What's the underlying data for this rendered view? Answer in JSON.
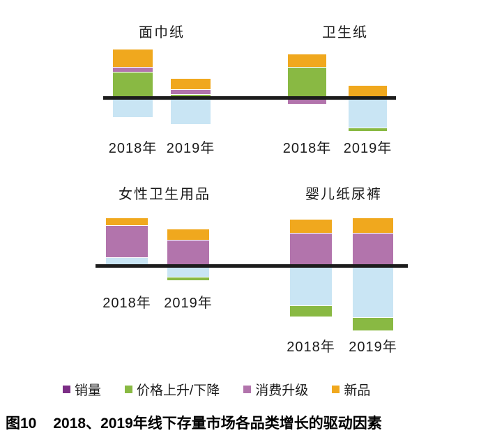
{
  "figure": {
    "caption_prefix": "图10",
    "caption_text": "2018、2019年线下存量市场各品类增长的驱动因素"
  },
  "colors": {
    "volume_legend": "#7C2E86",
    "price_up_down": "#89B943",
    "consumption_upgrade": "#B274AC",
    "new_products": "#F0A81E",
    "volume_bar_light_blue": "#C9E5F4",
    "axis": "#1C1C1C",
    "text": "#1A1A1A"
  },
  "legend": [
    {
      "label": "销量",
      "color_key": "volume_legend"
    },
    {
      "label": "价格上升/下降",
      "color_key": "price_up_down"
    },
    {
      "label": "消费升级",
      "color_key": "consumption_upgrade"
    },
    {
      "label": "新品",
      "color_key": "new_products"
    }
  ],
  "chart_data": [
    {
      "type": "bar",
      "title": "面巾纸",
      "categories": [
        "2018年",
        "2019年"
      ],
      "value_unit": "relative growth contribution (no numeric axis shown; values estimated in px)",
      "bars": [
        {
          "category": "2018年",
          "above_axis": [
            {
              "driver": "价格上升/下降",
              "color_key": "price_up_down",
              "value": 34
            },
            {
              "driver": "消费升级",
              "color_key": "consumption_upgrade",
              "value": 6
            },
            {
              "driver": "新品",
              "color_key": "new_products",
              "value": 25
            }
          ],
          "below_axis": [
            {
              "driver": "销量",
              "color_key": "volume_bar_light_blue",
              "value": 25
            }
          ]
        },
        {
          "category": "2019年",
          "above_axis": [
            {
              "driver": "价格上升/下降",
              "color_key": "price_up_down",
              "value": 2
            },
            {
              "driver": "消费升级",
              "color_key": "consumption_upgrade",
              "value": 6
            },
            {
              "driver": "新品",
              "color_key": "new_products",
              "value": 15
            }
          ],
          "below_axis": [
            {
              "driver": "销量",
              "color_key": "volume_bar_light_blue",
              "value": 35
            }
          ]
        }
      ]
    },
    {
      "type": "bar",
      "title": "卫生纸",
      "categories": [
        "2018年",
        "2019年"
      ],
      "value_unit": "relative growth contribution (no numeric axis shown; values estimated in px)",
      "bars": [
        {
          "category": "2018年",
          "above_axis": [
            {
              "driver": "价格上升/下降",
              "color_key": "price_up_down",
              "value": 41
            },
            {
              "driver": "新品",
              "color_key": "new_products",
              "value": 18
            }
          ],
          "below_axis": [
            {
              "driver": "消费升级",
              "color_key": "consumption_upgrade",
              "value": 6
            }
          ]
        },
        {
          "category": "2019年",
          "above_axis": [
            {
              "driver": "新品",
              "color_key": "new_products",
              "value": 15
            }
          ],
          "below_axis": [
            {
              "driver": "销量",
              "color_key": "volume_bar_light_blue",
              "value": 40
            },
            {
              "driver": "价格上升/下降",
              "color_key": "price_up_down",
              "value": 4
            }
          ]
        }
      ]
    },
    {
      "type": "bar",
      "title": "女性卫生用品",
      "categories": [
        "2018年",
        "2019年"
      ],
      "value_unit": "relative growth contribution (no numeric axis shown; values estimated in px)",
      "bars": [
        {
          "category": "2018年",
          "above_axis": [
            {
              "driver": "销量",
              "color_key": "volume_bar_light_blue",
              "value": 9
            },
            {
              "driver": "消费升级",
              "color_key": "consumption_upgrade",
              "value": 45
            },
            {
              "driver": "新品",
              "color_key": "new_products",
              "value": 10
            }
          ],
          "below_axis": []
        },
        {
          "category": "2019年",
          "above_axis": [
            {
              "driver": "消费升级",
              "color_key": "consumption_upgrade",
              "value": 34
            },
            {
              "driver": "新品",
              "color_key": "new_products",
              "value": 15
            }
          ],
          "below_axis": [
            {
              "driver": "销量",
              "color_key": "volume_bar_light_blue",
              "value": 13
            },
            {
              "driver": "价格上升/下降",
              "color_key": "price_up_down",
              "value": 4
            }
          ]
        }
      ]
    },
    {
      "type": "bar",
      "title": "婴儿纸尿裤",
      "categories": [
        "2018年",
        "2019年"
      ],
      "value_unit": "relative growth contribution (no numeric axis shown; values estimated in px)",
      "bars": [
        {
          "category": "2018年",
          "above_axis": [
            {
              "driver": "消费升级",
              "color_key": "consumption_upgrade",
              "value": 44
            },
            {
              "driver": "新品",
              "color_key": "new_products",
              "value": 19
            }
          ],
          "below_axis": [
            {
              "driver": "销量",
              "color_key": "volume_bar_light_blue",
              "value": 54
            },
            {
              "driver": "价格上升/下降",
              "color_key": "price_up_down",
              "value": 15
            }
          ]
        },
        {
          "category": "2019年",
          "above_axis": [
            {
              "driver": "消费升级",
              "color_key": "consumption_upgrade",
              "value": 44
            },
            {
              "driver": "新品",
              "color_key": "new_products",
              "value": 21
            }
          ],
          "below_axis": [
            {
              "driver": "销量",
              "color_key": "volume_bar_light_blue",
              "value": 71
            },
            {
              "driver": "价格上升/下降",
              "color_key": "price_up_down",
              "value": 18
            }
          ]
        }
      ]
    }
  ]
}
